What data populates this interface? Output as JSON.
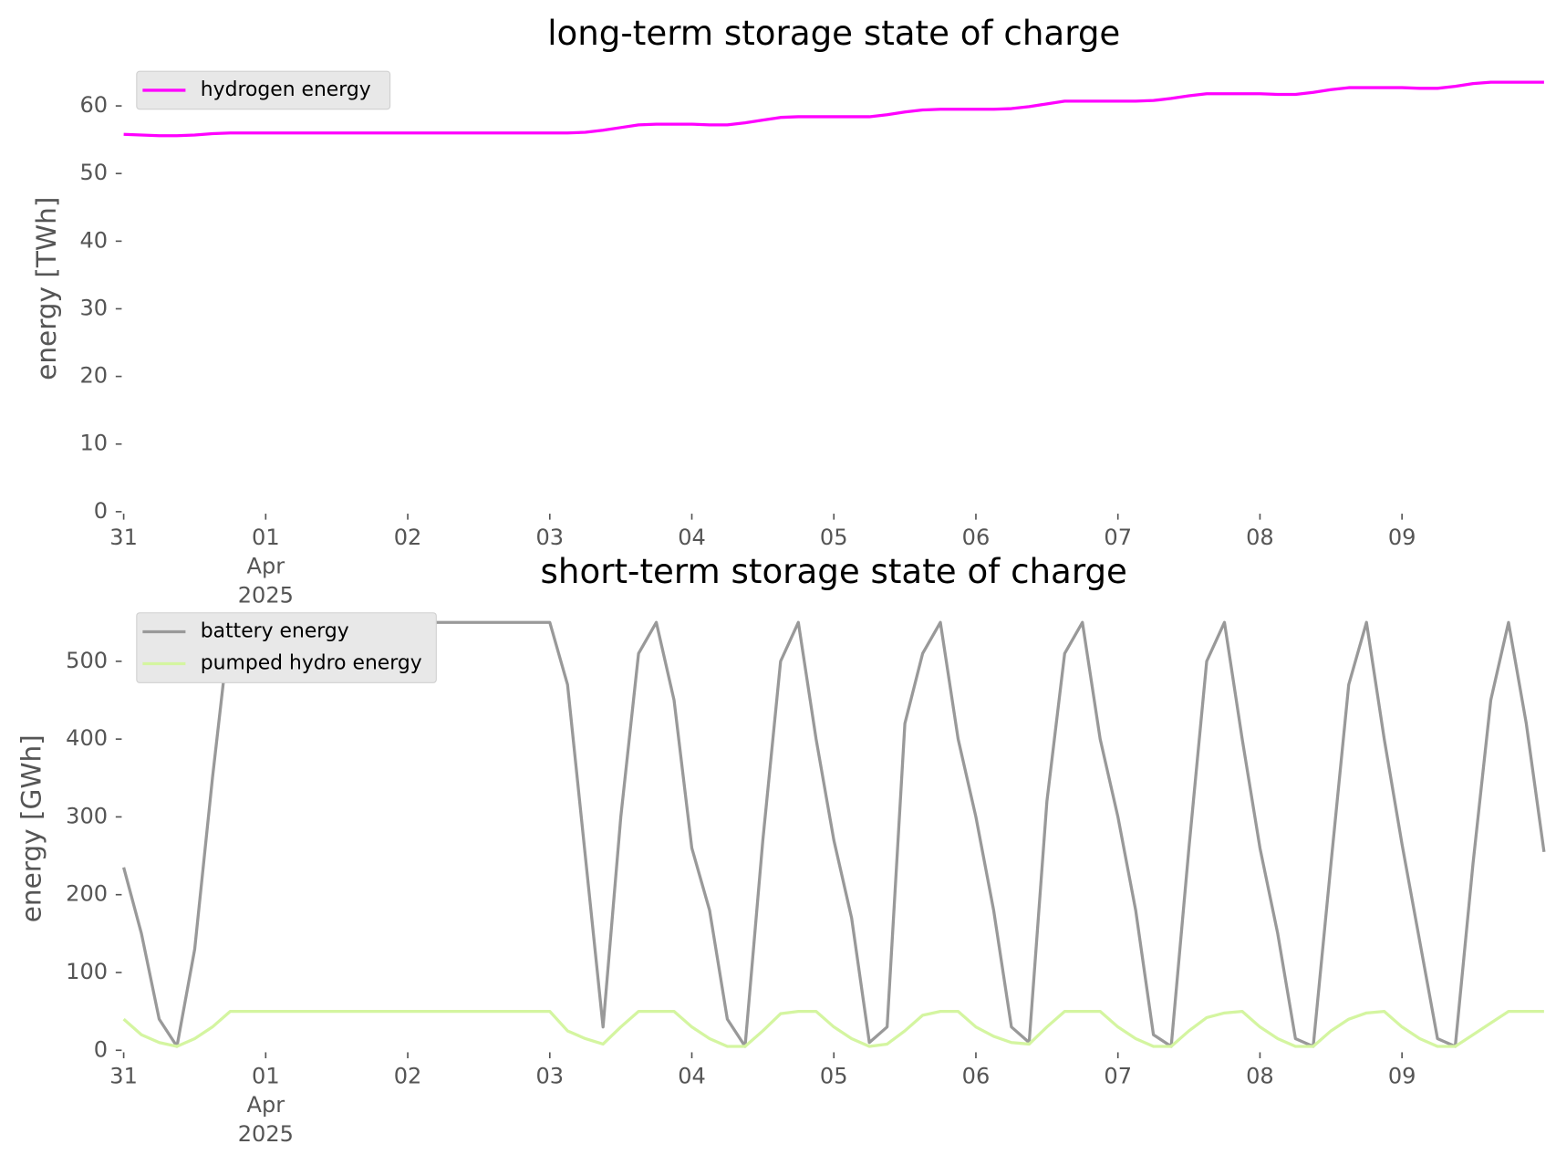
{
  "chart_data": [
    {
      "type": "line",
      "title": "long-term storage state of charge",
      "y_label": "energy [TWh]",
      "x": [
        0,
        0.125,
        0.25,
        0.375,
        0.5,
        0.625,
        0.75,
        0.875,
        1,
        1.125,
        1.25,
        1.375,
        1.5,
        1.625,
        1.75,
        1.875,
        2,
        2.125,
        2.25,
        2.375,
        2.5,
        2.625,
        2.75,
        2.875,
        3,
        3.125,
        3.25,
        3.375,
        3.5,
        3.625,
        3.75,
        3.875,
        4,
        4.125,
        4.25,
        4.375,
        4.5,
        4.625,
        4.75,
        4.875,
        5,
        5.125,
        5.25,
        5.375,
        5.5,
        5.625,
        5.75,
        5.875,
        6,
        6.125,
        6.25,
        6.375,
        6.5,
        6.625,
        6.75,
        6.875,
        7,
        7.125,
        7.25,
        7.375,
        7.5,
        7.625,
        7.75,
        7.875,
        8,
        8.125,
        8.25,
        8.375,
        8.5,
        8.625,
        8.75,
        8.875,
        9,
        9.125,
        9.25,
        9.375,
        9.5,
        9.625,
        9.75,
        9.875,
        10
      ],
      "series": [
        {
          "name": "hydrogen energy",
          "color": "#ff00ff",
          "values": [
            55.8,
            55.7,
            55.6,
            55.6,
            55.7,
            55.9,
            56.0,
            56.0,
            56.0,
            56.0,
            56.0,
            56.0,
            56.0,
            56.0,
            56.0,
            56.0,
            56.0,
            56.0,
            56.0,
            56.0,
            56.0,
            56.0,
            56.0,
            56.0,
            56.0,
            56.0,
            56.1,
            56.4,
            56.8,
            57.2,
            57.3,
            57.3,
            57.3,
            57.2,
            57.2,
            57.5,
            57.9,
            58.3,
            58.4,
            58.4,
            58.4,
            58.4,
            58.4,
            58.7,
            59.1,
            59.4,
            59.5,
            59.5,
            59.5,
            59.5,
            59.6,
            59.9,
            60.3,
            60.7,
            60.7,
            60.7,
            60.7,
            60.7,
            60.8,
            61.1,
            61.5,
            61.8,
            61.8,
            61.8,
            61.8,
            61.7,
            61.7,
            62.0,
            62.4,
            62.7,
            62.7,
            62.7,
            62.7,
            62.6,
            62.6,
            62.9,
            63.3,
            63.5,
            63.5,
            63.5,
            63.5
          ]
        }
      ],
      "xlim": [
        0,
        10
      ],
      "xticks": [
        {
          "value": 0,
          "label": "31"
        },
        {
          "value": 1,
          "label": "01\nApr\n2025"
        },
        {
          "value": 2,
          "label": "02"
        },
        {
          "value": 3,
          "label": "03"
        },
        {
          "value": 4,
          "label": "04"
        },
        {
          "value": 5,
          "label": "05"
        },
        {
          "value": 6,
          "label": "06"
        },
        {
          "value": 7,
          "label": "07"
        },
        {
          "value": 8,
          "label": "08"
        },
        {
          "value": 9,
          "label": "09"
        }
      ],
      "ylim": [
        0,
        66
      ],
      "yticks": [
        0,
        10,
        20,
        30,
        40,
        50,
        60
      ],
      "grid": false,
      "legend_loc": "upper left"
    },
    {
      "type": "line",
      "title": "short-term storage state of charge",
      "y_label": "energy [GWh]",
      "x": [
        0,
        0.125,
        0.25,
        0.375,
        0.5,
        0.625,
        0.75,
        0.875,
        1,
        1.125,
        1.25,
        1.375,
        1.5,
        1.625,
        1.75,
        1.875,
        2,
        2.125,
        2.25,
        2.375,
        2.5,
        2.625,
        2.75,
        2.875,
        3,
        3.125,
        3.25,
        3.375,
        3.5,
        3.625,
        3.75,
        3.875,
        4,
        4.125,
        4.25,
        4.375,
        4.5,
        4.625,
        4.75,
        4.875,
        5,
        5.125,
        5.25,
        5.375,
        5.5,
        5.625,
        5.75,
        5.875,
        6,
        6.125,
        6.25,
        6.375,
        6.5,
        6.625,
        6.75,
        6.875,
        7,
        7.125,
        7.25,
        7.375,
        7.5,
        7.625,
        7.75,
        7.875,
        8,
        8.125,
        8.25,
        8.375,
        8.5,
        8.625,
        8.75,
        8.875,
        9,
        9.125,
        9.25,
        9.375,
        9.5,
        9.625,
        9.75,
        9.875,
        10
      ],
      "series": [
        {
          "name": "battery energy",
          "color": "#999999",
          "values": [
            235,
            150,
            40,
            5,
            130,
            350,
            550,
            550,
            550,
            550,
            550,
            550,
            550,
            550,
            550,
            550,
            550,
            550,
            550,
            550,
            550,
            550,
            550,
            550,
            550,
            470,
            250,
            30,
            300,
            510,
            550,
            450,
            260,
            180,
            40,
            5,
            270,
            500,
            550,
            400,
            270,
            170,
            10,
            30,
            420,
            510,
            550,
            400,
            300,
            180,
            30,
            10,
            320,
            510,
            550,
            400,
            300,
            180,
            20,
            5,
            260,
            500,
            550,
            400,
            260,
            150,
            15,
            5,
            240,
            470,
            550,
            400,
            265,
            140,
            15,
            5,
            240,
            450,
            550,
            420,
            255
          ]
        },
        {
          "name": "pumped hydro energy",
          "color": "#d4f5a0",
          "values": [
            40,
            20,
            10,
            5,
            15,
            30,
            50,
            50,
            50,
            50,
            50,
            50,
            50,
            50,
            50,
            50,
            50,
            50,
            50,
            50,
            50,
            50,
            50,
            50,
            50,
            25,
            15,
            8,
            30,
            50,
            50,
            50,
            30,
            15,
            5,
            5,
            25,
            47,
            50,
            50,
            30,
            15,
            5,
            8,
            25,
            45,
            50,
            50,
            30,
            18,
            10,
            8,
            30,
            50,
            50,
            50,
            30,
            15,
            5,
            5,
            25,
            42,
            48,
            50,
            30,
            15,
            5,
            5,
            25,
            40,
            48,
            50,
            30,
            15,
            5,
            5,
            20,
            35,
            50,
            50,
            50
          ]
        }
      ],
      "xlim": [
        0,
        10
      ],
      "xticks": [
        {
          "value": 0,
          "label": "31"
        },
        {
          "value": 1,
          "label": "01\nApr\n2025"
        },
        {
          "value": 2,
          "label": "02"
        },
        {
          "value": 3,
          "label": "03"
        },
        {
          "value": 4,
          "label": "04"
        },
        {
          "value": 5,
          "label": "05"
        },
        {
          "value": 6,
          "label": "06"
        },
        {
          "value": 7,
          "label": "07"
        },
        {
          "value": 8,
          "label": "08"
        },
        {
          "value": 9,
          "label": "09"
        }
      ],
      "ylim": [
        0,
        570
      ],
      "yticks": [
        0,
        100,
        200,
        300,
        400,
        500
      ],
      "grid": false,
      "legend_loc": "upper left"
    }
  ]
}
